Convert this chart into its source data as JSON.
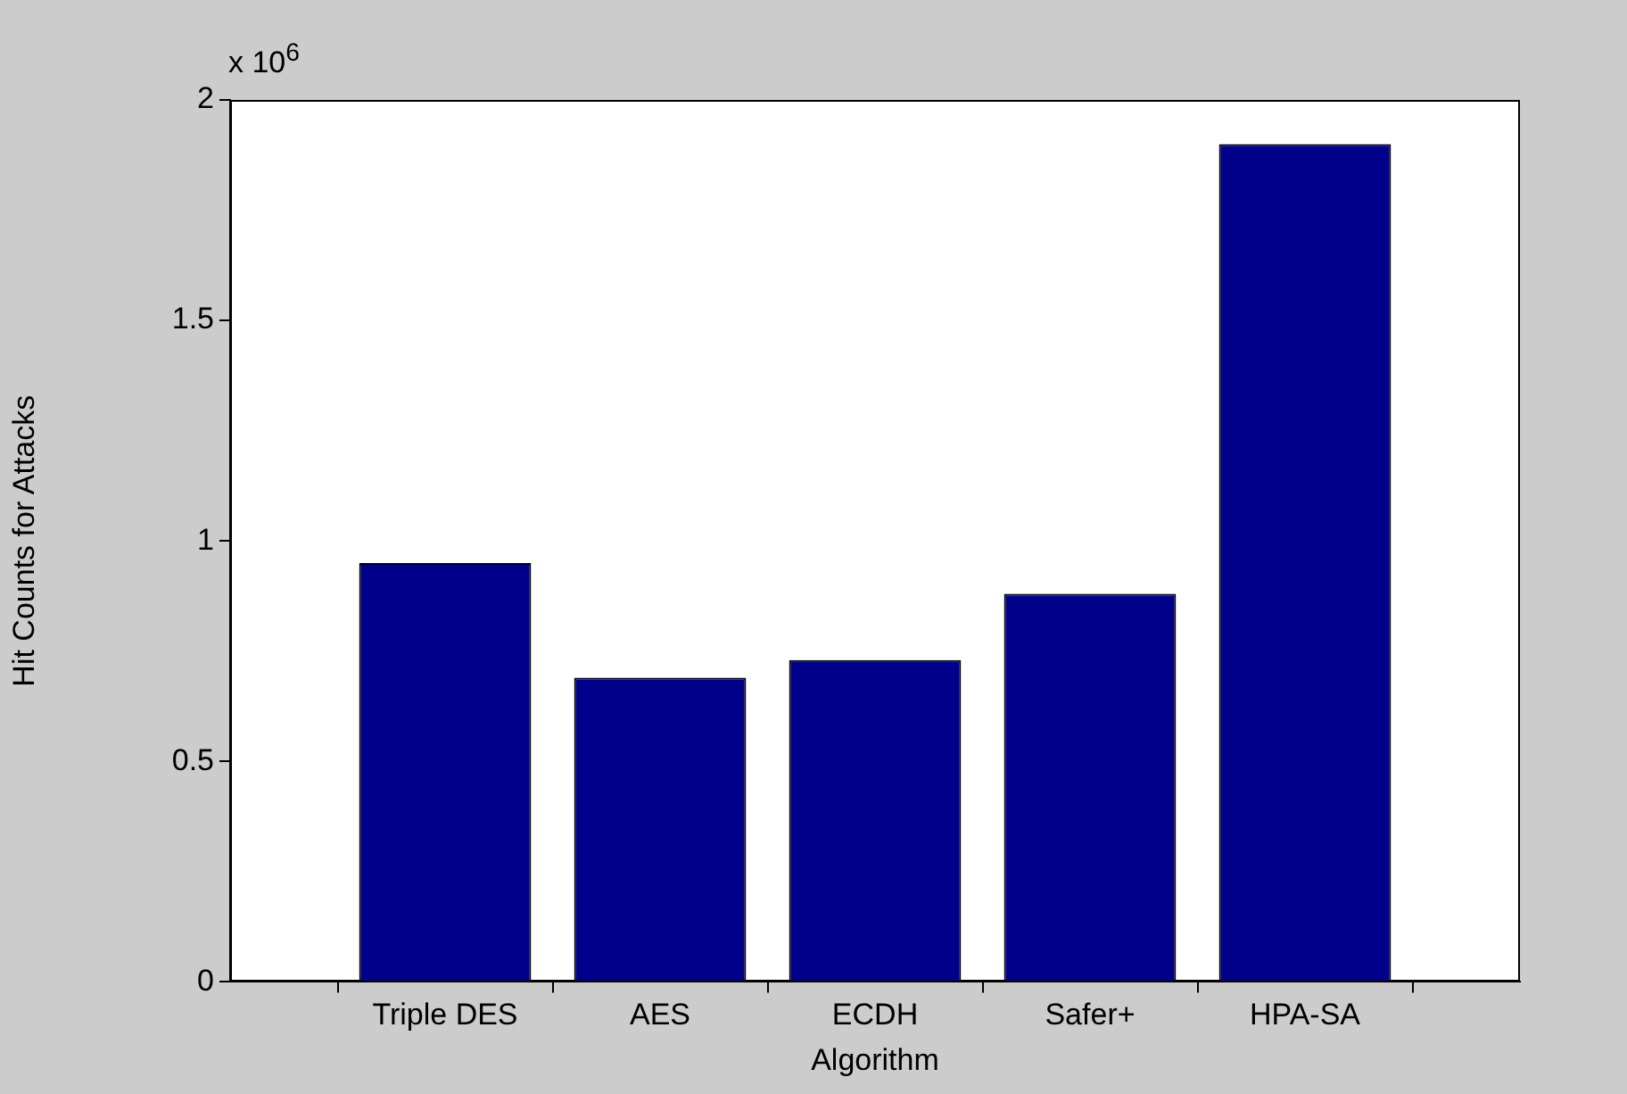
{
  "chart_data": {
    "type": "bar",
    "categories": [
      "Triple DES",
      "AES",
      "ECDH",
      "Safer+",
      "HPA-SA"
    ],
    "values": [
      0.95,
      0.69,
      0.73,
      0.88,
      1.9
    ],
    "color": "#00008b",
    "xlabel": "Algorithm",
    "ylabel": "Hit Counts for Attacks",
    "ylim": [
      0,
      2
    ],
    "yticks": [
      0,
      0.5,
      1,
      1.5,
      2
    ],
    "annotations": [
      "x 10$^{6}$"
    ],
    "grid": false,
    "legend": false
  }
}
